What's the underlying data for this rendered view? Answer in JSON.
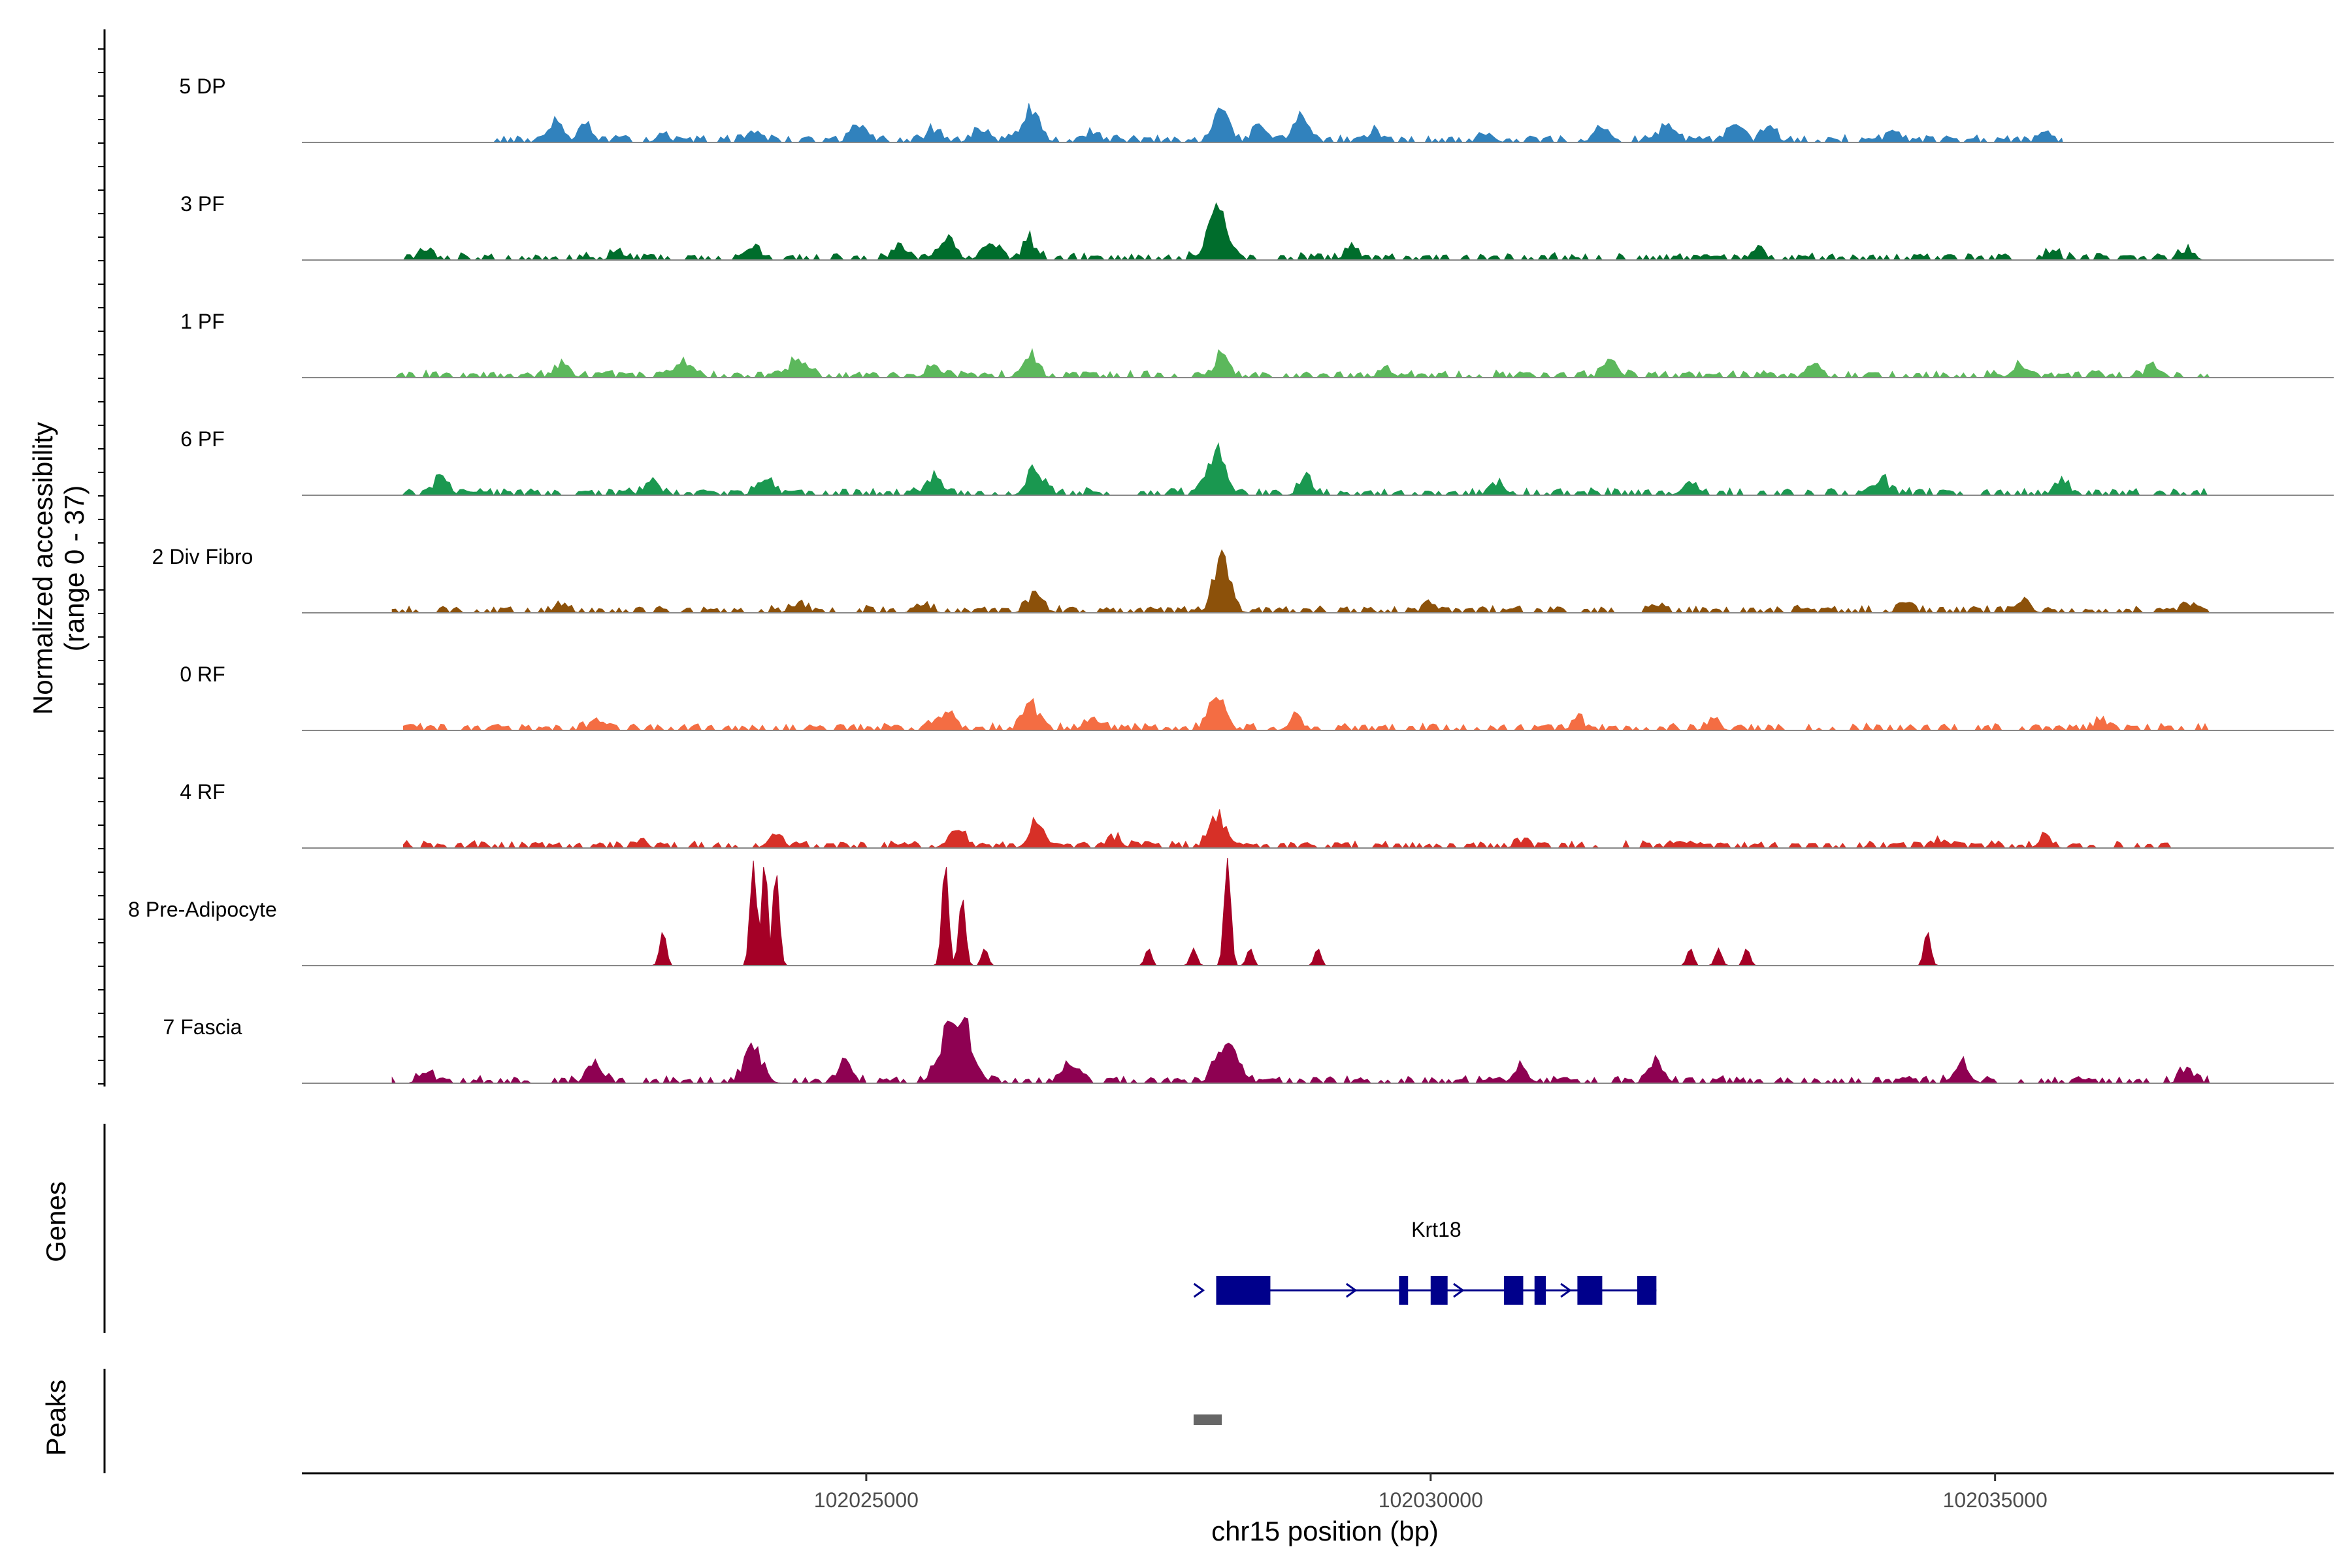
{
  "chart_data": {
    "type": "area",
    "title": "",
    "ylabel": "Normalized accessibility",
    "ylabel_range": "(range 0 - 37)",
    "ylim": [
      0,
      37
    ],
    "xlabel": "chr15 position (bp)",
    "xlim": [
      102020000,
      102038000
    ],
    "xticks": [
      102025000,
      102030000,
      102035000
    ],
    "xtick_labels": [
      "102025000",
      "102030000",
      "102035000"
    ],
    "tracks": [
      {
        "name": "5 DP",
        "color": "#3182bd",
        "region": [
          102021700,
          102035600
        ],
        "peaks": [
          {
            "pos": 102022250,
            "h": 6,
            "w": 80
          },
          {
            "pos": 102022500,
            "h": 5,
            "w": 90
          },
          {
            "pos": 102023200,
            "h": 3,
            "w": 70
          },
          {
            "pos": 102024000,
            "h": 4,
            "w": 90
          },
          {
            "pos": 102024950,
            "h": 5,
            "w": 100
          },
          {
            "pos": 102025600,
            "h": 4,
            "w": 90
          },
          {
            "pos": 102026000,
            "h": 4,
            "w": 90
          },
          {
            "pos": 102026450,
            "h": 10,
            "w": 110
          },
          {
            "pos": 102027000,
            "h": 3,
            "w": 90
          },
          {
            "pos": 102028150,
            "h": 14,
            "w": 90
          },
          {
            "pos": 102028500,
            "h": 5,
            "w": 100
          },
          {
            "pos": 102028850,
            "h": 10,
            "w": 90
          },
          {
            "pos": 102029500,
            "h": 3,
            "w": 80
          },
          {
            "pos": 102030500,
            "h": 3,
            "w": 80
          },
          {
            "pos": 102031500,
            "h": 4,
            "w": 90
          },
          {
            "pos": 102032100,
            "h": 5,
            "w": 90
          },
          {
            "pos": 102032700,
            "h": 6,
            "w": 90
          },
          {
            "pos": 102033000,
            "h": 5,
            "w": 80
          },
          {
            "pos": 102034100,
            "h": 4,
            "w": 80
          },
          {
            "pos": 102035450,
            "h": 2,
            "w": 70
          }
        ]
      },
      {
        "name": "3 PF",
        "color": "#006d2c",
        "region": [
          102020900,
          102036900
        ],
        "peaks": [
          {
            "pos": 102021100,
            "h": 3,
            "w": 80
          },
          {
            "pos": 102022800,
            "h": 3,
            "w": 80
          },
          {
            "pos": 102024000,
            "h": 4,
            "w": 90
          },
          {
            "pos": 102025300,
            "h": 4,
            "w": 90
          },
          {
            "pos": 102025700,
            "h": 6,
            "w": 110
          },
          {
            "pos": 102026100,
            "h": 5,
            "w": 100
          },
          {
            "pos": 102026450,
            "h": 6,
            "w": 80
          },
          {
            "pos": 102028100,
            "h": 18,
            "w": 110
          },
          {
            "pos": 102029300,
            "h": 4,
            "w": 80
          },
          {
            "pos": 102032900,
            "h": 3,
            "w": 80
          },
          {
            "pos": 102035500,
            "h": 3,
            "w": 80
          },
          {
            "pos": 102036700,
            "h": 3,
            "w": 80
          }
        ]
      },
      {
        "name": "1 PF",
        "color": "#5cb85c",
        "region": [
          102020800,
          102036900
        ],
        "peaks": [
          {
            "pos": 102022300,
            "h": 4,
            "w": 90
          },
          {
            "pos": 102023400,
            "h": 5,
            "w": 100
          },
          {
            "pos": 102024400,
            "h": 6,
            "w": 100
          },
          {
            "pos": 102025600,
            "h": 4,
            "w": 90
          },
          {
            "pos": 102026450,
            "h": 7,
            "w": 90
          },
          {
            "pos": 102028150,
            "h": 8,
            "w": 80
          },
          {
            "pos": 102029600,
            "h": 3,
            "w": 80
          },
          {
            "pos": 102031600,
            "h": 4,
            "w": 90
          },
          {
            "pos": 102033400,
            "h": 4,
            "w": 80
          },
          {
            "pos": 102035200,
            "h": 3,
            "w": 80
          },
          {
            "pos": 102036400,
            "h": 3,
            "w": 80
          }
        ]
      },
      {
        "name": "6 PF",
        "color": "#1a9850",
        "region": [
          102020800,
          102036900
        ],
        "peaks": [
          {
            "pos": 102021250,
            "h": 6,
            "w": 80
          },
          {
            "pos": 102023100,
            "h": 5,
            "w": 90
          },
          {
            "pos": 102024100,
            "h": 5,
            "w": 100
          },
          {
            "pos": 102025600,
            "h": 6,
            "w": 100
          },
          {
            "pos": 102026500,
            "h": 8,
            "w": 100
          },
          {
            "pos": 102028100,
            "h": 14,
            "w": 110
          },
          {
            "pos": 102028900,
            "h": 6,
            "w": 80
          },
          {
            "pos": 102030600,
            "h": 4,
            "w": 90
          },
          {
            "pos": 102032300,
            "h": 5,
            "w": 90
          },
          {
            "pos": 102034000,
            "h": 4,
            "w": 90
          },
          {
            "pos": 102035600,
            "h": 4,
            "w": 90
          }
        ]
      },
      {
        "name": "2 Div Fibro",
        "color": "#8c510a",
        "region": [
          102020800,
          102036900
        ],
        "peaks": [
          {
            "pos": 102022300,
            "h": 3,
            "w": 80
          },
          {
            "pos": 102024400,
            "h": 3,
            "w": 90
          },
          {
            "pos": 102025500,
            "h": 3,
            "w": 90
          },
          {
            "pos": 102026500,
            "h": 5,
            "w": 100
          },
          {
            "pos": 102028150,
            "h": 18,
            "w": 100
          },
          {
            "pos": 102030000,
            "h": 3,
            "w": 80
          },
          {
            "pos": 102032000,
            "h": 2,
            "w": 80
          },
          {
            "pos": 102034200,
            "h": 3,
            "w": 80
          },
          {
            "pos": 102035250,
            "h": 5,
            "w": 80
          },
          {
            "pos": 102036700,
            "h": 3,
            "w": 80
          }
        ]
      },
      {
        "name": "0 RF",
        "color": "#f46d43",
        "region": [
          102020900,
          102036900
        ],
        "peaks": [
          {
            "pos": 102022600,
            "h": 3,
            "w": 80
          },
          {
            "pos": 102025700,
            "h": 6,
            "w": 110
          },
          {
            "pos": 102026450,
            "h": 10,
            "w": 90
          },
          {
            "pos": 102027000,
            "h": 4,
            "w": 100
          },
          {
            "pos": 102028100,
            "h": 11,
            "w": 100
          },
          {
            "pos": 102028800,
            "h": 4,
            "w": 80
          },
          {
            "pos": 102031300,
            "h": 3,
            "w": 80
          },
          {
            "pos": 102032500,
            "h": 3,
            "w": 80
          },
          {
            "pos": 102035950,
            "h": 3,
            "w": 80
          }
        ]
      },
      {
        "name": "4 RF",
        "color": "#d73027",
        "region": [
          102020900,
          102036600
        ],
        "peaks": [
          {
            "pos": 102023000,
            "h": 2,
            "w": 80
          },
          {
            "pos": 102024200,
            "h": 4,
            "w": 90
          },
          {
            "pos": 102025800,
            "h": 6,
            "w": 100
          },
          {
            "pos": 102026500,
            "h": 7,
            "w": 90
          },
          {
            "pos": 102027200,
            "h": 3,
            "w": 90
          },
          {
            "pos": 102028100,
            "h": 11,
            "w": 90
          },
          {
            "pos": 102030800,
            "h": 2,
            "w": 80
          },
          {
            "pos": 102032200,
            "h": 3,
            "w": 80
          },
          {
            "pos": 102034500,
            "h": 2,
            "w": 80
          },
          {
            "pos": 102035450,
            "h": 3,
            "w": 80
          }
        ]
      },
      {
        "name": "8 Pre-Adipocyte",
        "color": "#a50026",
        "region": [
          102023100,
          102034500
        ],
        "peaks": [
          {
            "pos": 102023200,
            "h": 12,
            "w": 40
          },
          {
            "pos": 102024000,
            "h": 36,
            "w": 40
          },
          {
            "pos": 102024100,
            "h": 36,
            "w": 40
          },
          {
            "pos": 102024200,
            "h": 33,
            "w": 40
          },
          {
            "pos": 102025700,
            "h": 36,
            "w": 40
          },
          {
            "pos": 102025850,
            "h": 24,
            "w": 40
          },
          {
            "pos": 102026050,
            "h": 6,
            "w": 40
          },
          {
            "pos": 102027500,
            "h": 6,
            "w": 40
          },
          {
            "pos": 102027900,
            "h": 6,
            "w": 40
          },
          {
            "pos": 102028200,
            "h": 37,
            "w": 40
          },
          {
            "pos": 102028400,
            "h": 6,
            "w": 40
          },
          {
            "pos": 102029000,
            "h": 6,
            "w": 40
          },
          {
            "pos": 102032300,
            "h": 6,
            "w": 40
          },
          {
            "pos": 102032550,
            "h": 6,
            "w": 40
          },
          {
            "pos": 102032800,
            "h": 6,
            "w": 40
          },
          {
            "pos": 102034400,
            "h": 12,
            "w": 40
          }
        ]
      },
      {
        "name": "7 Fascia",
        "color": "#8e0152",
        "region": [
          102020800,
          102036900
        ],
        "peaks": [
          {
            "pos": 102021100,
            "h": 4,
            "w": 80
          },
          {
            "pos": 102022600,
            "h": 5,
            "w": 90
          },
          {
            "pos": 102024000,
            "h": 12,
            "w": 110
          },
          {
            "pos": 102024800,
            "h": 6,
            "w": 90
          },
          {
            "pos": 102025800,
            "h": 25,
            "w": 160
          },
          {
            "pos": 102026800,
            "h": 6,
            "w": 100
          },
          {
            "pos": 102028200,
            "h": 14,
            "w": 130
          },
          {
            "pos": 102030800,
            "h": 5,
            "w": 90
          },
          {
            "pos": 102032000,
            "h": 6,
            "w": 90
          },
          {
            "pos": 102034700,
            "h": 7,
            "w": 90
          },
          {
            "pos": 102036700,
            "h": 5,
            "w": 80
          }
        ]
      }
    ],
    "genes_track_label": "Genes",
    "peaks_track_label": "Peaks",
    "gene": {
      "name": "Krt18",
      "strand": "+",
      "color": "#00008b",
      "start": 102028100,
      "end": 102032000,
      "exons": [
        [
          102028100,
          102028580
        ],
        [
          102029720,
          102029800
        ],
        [
          102030000,
          102030150
        ],
        [
          102030650,
          102030820
        ],
        [
          102030920,
          102031020
        ],
        [
          102031300,
          102031520
        ],
        [
          102031830,
          102032000
        ]
      ]
    },
    "peak_regions": [
      {
        "start": 102027900,
        "end": 102028150,
        "color": "#666666"
      }
    ]
  }
}
